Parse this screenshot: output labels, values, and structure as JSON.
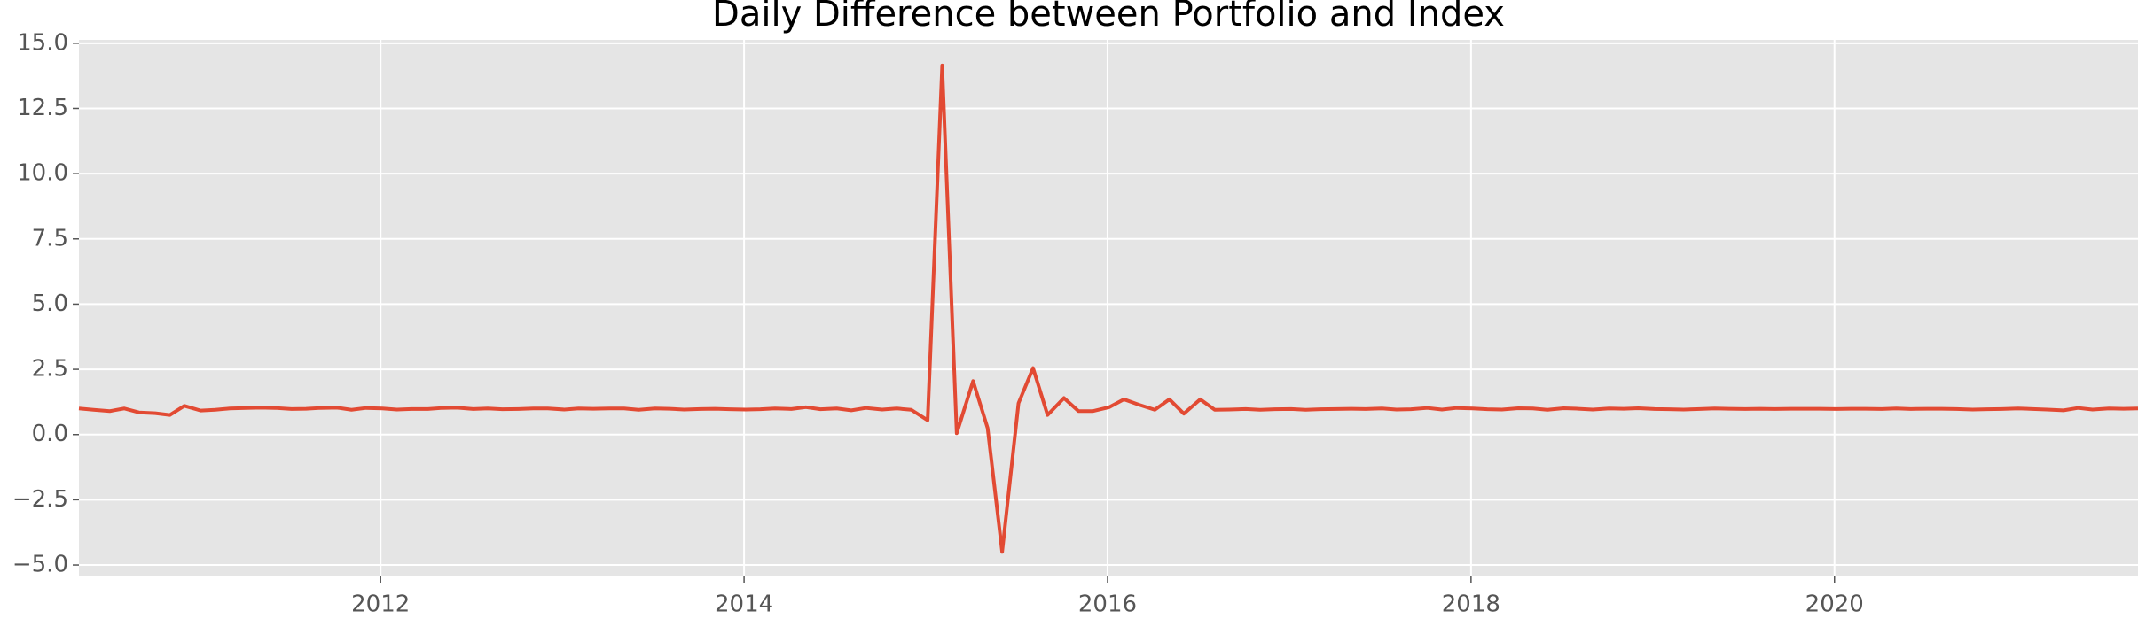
{
  "chart_data": {
    "type": "line",
    "title": "Daily Difference between Portfolio and Index",
    "x": [
      2010.34,
      2010.42,
      2010.51,
      2010.59,
      2010.67,
      2010.76,
      2010.84,
      2010.92,
      2011.01,
      2011.09,
      2011.17,
      2011.26,
      2011.34,
      2011.42,
      2011.51,
      2011.59,
      2011.67,
      2011.76,
      2011.84,
      2011.92,
      2012.01,
      2012.09,
      2012.17,
      2012.26,
      2012.34,
      2012.42,
      2012.51,
      2012.59,
      2012.67,
      2012.76,
      2012.84,
      2012.92,
      2013.01,
      2013.09,
      2013.17,
      2013.26,
      2013.34,
      2013.42,
      2013.51,
      2013.59,
      2013.67,
      2013.76,
      2013.84,
      2013.92,
      2014.01,
      2014.09,
      2014.17,
      2014.26,
      2014.34,
      2014.42,
      2014.51,
      2014.59,
      2014.67,
      2014.76,
      2014.84,
      2014.92,
      2015.01,
      2015.09,
      2015.17,
      2015.26,
      2015.34,
      2015.42,
      2015.51,
      2015.59,
      2015.67,
      2015.76,
      2015.84,
      2015.92,
      2016.01,
      2016.09,
      2016.17,
      2016.26,
      2016.34,
      2016.42,
      2016.51,
      2016.59,
      2016.67,
      2016.76,
      2016.84,
      2016.92,
      2017.01,
      2017.09,
      2017.17,
      2017.26,
      2017.34,
      2017.42,
      2017.51,
      2017.59,
      2017.67,
      2017.76,
      2017.84,
      2017.92,
      2018.01,
      2018.09,
      2018.17,
      2018.26,
      2018.34,
      2018.42,
      2018.51,
      2018.59,
      2018.67,
      2018.76,
      2018.84,
      2018.92,
      2019.01,
      2019.09,
      2019.17,
      2019.26,
      2019.34,
      2019.42,
      2019.51,
      2019.59,
      2019.67,
      2019.76,
      2019.84,
      2019.92,
      2020.01,
      2020.09,
      2020.17,
      2020.26,
      2020.34,
      2020.42,
      2020.51,
      2020.59,
      2020.67,
      2020.76,
      2020.84,
      2020.92,
      2021.01,
      2021.09,
      2021.17,
      2021.26,
      2021.34,
      2021.42,
      2021.51,
      2021.59,
      2021.67
    ],
    "values": [
      1.0,
      0.95,
      0.9,
      1.0,
      0.85,
      0.82,
      0.75,
      1.1,
      0.92,
      0.95,
      1.0,
      1.02,
      1.03,
      1.02,
      0.98,
      0.99,
      1.02,
      1.03,
      0.95,
      1.02,
      1.0,
      0.96,
      0.98,
      0.98,
      1.02,
      1.03,
      0.98,
      1.0,
      0.97,
      0.98,
      1.0,
      1.0,
      0.96,
      1.0,
      0.99,
      1.0,
      1.0,
      0.95,
      1.0,
      0.99,
      0.96,
      0.98,
      0.99,
      0.97,
      0.96,
      0.97,
      1.0,
      0.98,
      1.05,
      0.97,
      1.0,
      0.93,
      1.02,
      0.96,
      1.0,
      0.95,
      0.55,
      14.15,
      0.05,
      2.05,
      0.25,
      -4.5,
      1.2,
      2.55,
      0.75,
      1.4,
      0.9,
      0.9,
      1.05,
      1.35,
      1.15,
      0.95,
      1.35,
      0.8,
      1.35,
      0.95,
      0.96,
      0.98,
      0.95,
      0.97,
      0.98,
      0.95,
      0.97,
      0.98,
      0.99,
      0.98,
      1.0,
      0.96,
      0.97,
      1.02,
      0.96,
      1.02,
      1.0,
      0.97,
      0.96,
      1.01,
      1.0,
      0.95,
      1.01,
      0.99,
      0.96,
      1.0,
      0.99,
      1.01,
      0.98,
      0.97,
      0.96,
      0.98,
      1.0,
      0.99,
      0.98,
      0.99,
      0.98,
      0.99,
      0.99,
      0.99,
      0.98,
      0.99,
      0.99,
      0.98,
      1.0,
      0.98,
      0.99,
      0.99,
      0.98,
      0.96,
      0.97,
      0.98,
      1.0,
      0.98,
      0.96,
      0.93,
      1.02,
      0.96,
      1.0,
      0.99,
      1.0
    ],
    "color": "#e24a33",
    "xlim": [
      2010.34,
      2021.67
    ],
    "xticks": [
      2012,
      2014,
      2016,
      2018,
      2020
    ],
    "ylim": [
      -5.44,
      15.13
    ],
    "yticks": [
      {
        "value": -5,
        "label": "−5.0"
      },
      {
        "value": -2.5,
        "label": "−2.5"
      },
      {
        "value": 0,
        "label": "0.0"
      },
      {
        "value": 2.5,
        "label": "2.5"
      },
      {
        "value": 5,
        "label": "5.0"
      },
      {
        "value": 7.5,
        "label": "7.5"
      },
      {
        "value": 10,
        "label": "10.0"
      },
      {
        "value": 12.5,
        "label": "12.5"
      },
      {
        "value": 15,
        "label": "15.0"
      }
    ],
    "grid": true
  }
}
